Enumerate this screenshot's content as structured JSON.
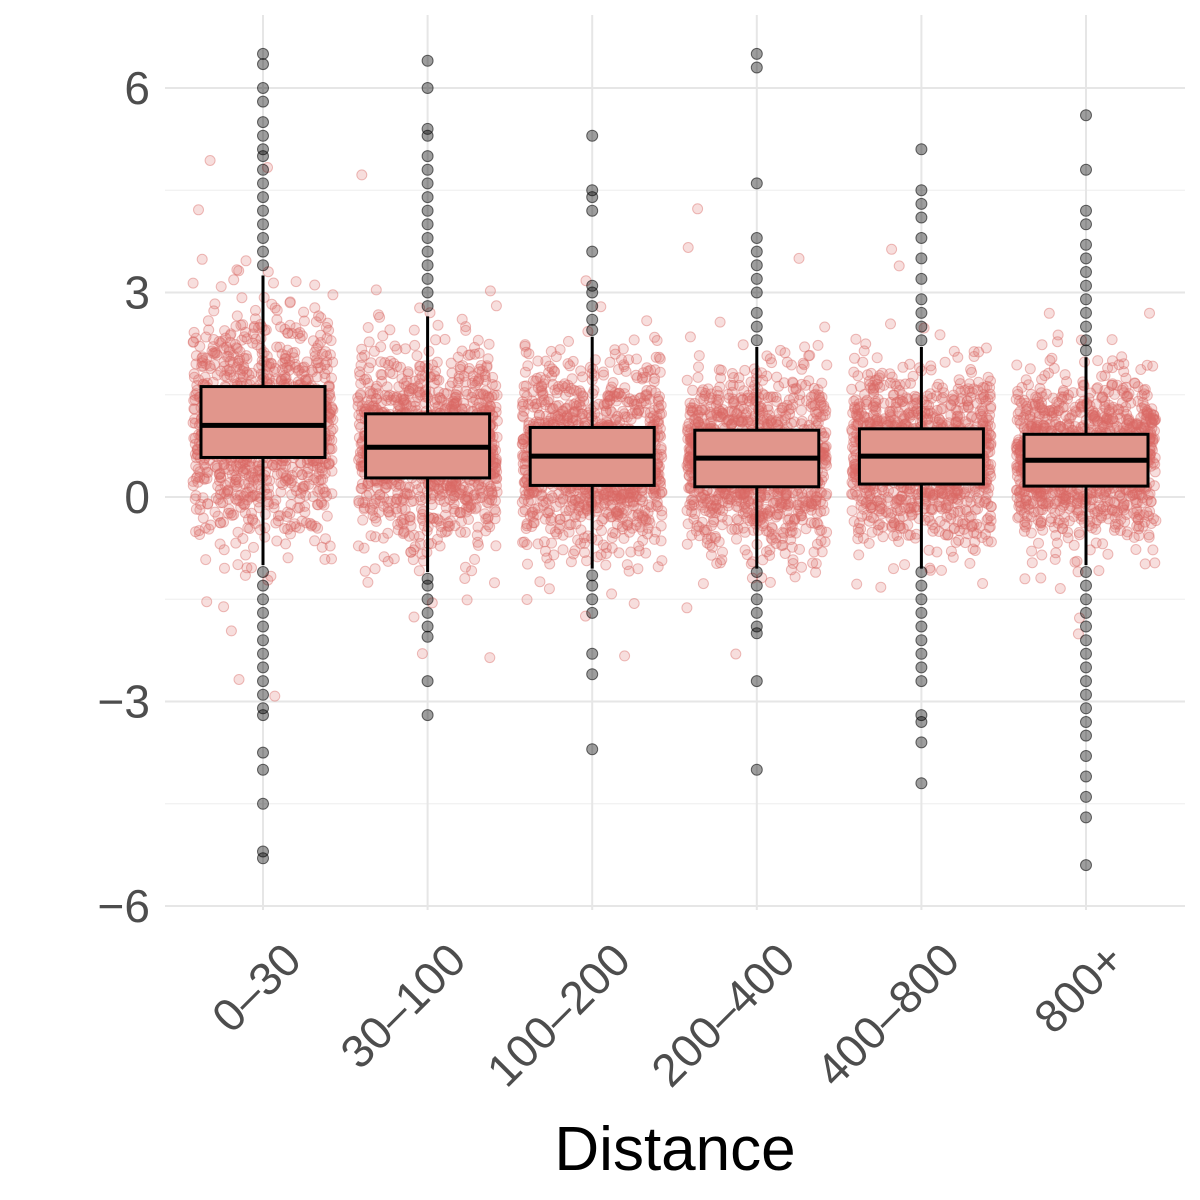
{
  "chart_data": {
    "type": "box",
    "title": "",
    "xlabel": "Distance",
    "ylabel": "",
    "ylim": [
      -6.3,
      7.0
    ],
    "y_ticks": [
      6,
      3,
      0,
      -3,
      -6
    ],
    "y_tick_labels": [
      "6",
      "3",
      "0",
      "−3",
      "−6"
    ],
    "grid": true,
    "legend": "none",
    "categories": [
      "0–30",
      "30–100",
      "100–200",
      "200–400",
      "400–800",
      "800+"
    ],
    "boxes": [
      {
        "q1": 0.58,
        "median": 1.05,
        "q3": 1.62,
        "whisker_low": -1.0,
        "whisker_high": 3.25,
        "outliers_high": [
          3.4,
          3.6,
          3.8,
          4.0,
          4.2,
          4.4,
          4.6,
          4.8,
          5.0,
          5.1,
          5.3,
          5.5,
          5.8,
          6.0,
          6.35,
          6.5
        ],
        "outliers_low": [
          -1.1,
          -1.3,
          -1.5,
          -1.7,
          -1.9,
          -2.1,
          -2.3,
          -2.5,
          -2.7,
          -2.9,
          -3.1,
          -3.2,
          -3.75,
          -4.0,
          -4.5,
          -5.2,
          -5.3
        ]
      },
      {
        "q1": 0.28,
        "median": 0.73,
        "q3": 1.22,
        "whisker_low": -1.1,
        "whisker_high": 2.65,
        "outliers_high": [
          2.8,
          3.0,
          3.2,
          3.4,
          3.6,
          3.8,
          4.0,
          4.2,
          4.4,
          4.6,
          4.8,
          5.0,
          5.3,
          5.4,
          6.0,
          6.4
        ],
        "outliers_low": [
          -1.2,
          -1.3,
          -1.5,
          -1.7,
          -1.9,
          -2.05,
          -2.7,
          -3.2
        ]
      },
      {
        "q1": 0.17,
        "median": 0.6,
        "q3": 1.02,
        "whisker_low": -1.05,
        "whisker_high": 2.35,
        "outliers_high": [
          2.45,
          2.6,
          2.8,
          3.0,
          3.1,
          3.6,
          4.2,
          4.4,
          4.5,
          5.3
        ],
        "outliers_low": [
          -1.15,
          -1.3,
          -1.5,
          -1.7,
          -2.3,
          -2.6,
          -3.7
        ]
      },
      {
        "q1": 0.15,
        "median": 0.57,
        "q3": 0.98,
        "whisker_low": -1.05,
        "whisker_high": 2.2,
        "outliers_high": [
          2.3,
          2.5,
          2.7,
          3.0,
          3.2,
          3.4,
          3.6,
          3.8,
          4.6,
          6.3,
          6.5
        ],
        "outliers_low": [
          -1.1,
          -1.3,
          -1.5,
          -1.7,
          -1.9,
          -2.0,
          -2.7,
          -4.0
        ]
      },
      {
        "q1": 0.19,
        "median": 0.6,
        "q3": 1.0,
        "whisker_low": -1.05,
        "whisker_high": 2.2,
        "outliers_high": [
          2.3,
          2.5,
          2.7,
          2.9,
          3.2,
          3.5,
          3.8,
          4.1,
          4.3,
          4.5,
          5.1
        ],
        "outliers_low": [
          -1.1,
          -1.3,
          -1.5,
          -1.7,
          -1.9,
          -2.1,
          -2.3,
          -2.5,
          -2.7,
          -3.2,
          -3.3,
          -3.6,
          -4.2
        ]
      },
      {
        "q1": 0.16,
        "median": 0.54,
        "q3": 0.92,
        "whisker_low": -1.0,
        "whisker_high": 2.05,
        "outliers_high": [
          2.15,
          2.3,
          2.5,
          2.7,
          2.9,
          3.1,
          3.3,
          3.5,
          3.7,
          4.0,
          4.2,
          4.8,
          5.6
        ],
        "outliers_low": [
          -1.1,
          -1.3,
          -1.5,
          -1.7,
          -1.9,
          -2.1,
          -2.3,
          -2.5,
          -2.7,
          -2.9,
          -3.1,
          -3.3,
          -3.5,
          -3.8,
          -4.1,
          -4.4,
          -4.7,
          -5.4
        ]
      }
    ]
  }
}
